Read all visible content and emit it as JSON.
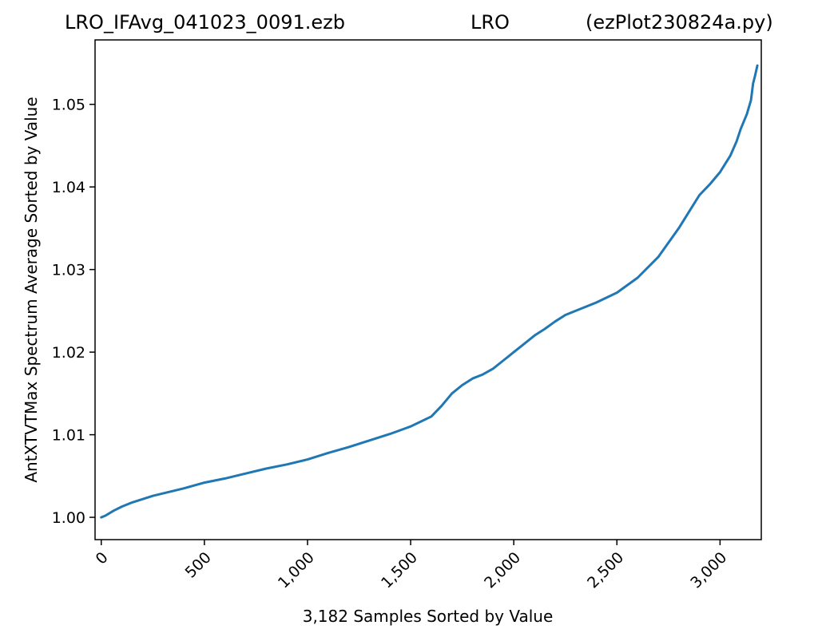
{
  "title": {
    "left": "LRO_IFAvg_041023_0091.ezb",
    "center": "LRO",
    "right": "(ezPlot230824a.py)"
  },
  "chart_data": {
    "type": "line",
    "xlabel": "3,182 Samples Sorted by Value",
    "ylabel": "AntXTVTMax Spectrum Average Sorted by Value",
    "xlim": [
      -30,
      3200
    ],
    "ylim": [
      0.9973,
      1.0578
    ],
    "xticks": [
      0,
      500,
      1000,
      1500,
      2000,
      2500,
      3000
    ],
    "xtick_labels": [
      "0",
      "500",
      "1,000",
      "1,500",
      "2,000",
      "2,500",
      "3,000"
    ],
    "yticks": [
      1.0,
      1.01,
      1.02,
      1.03,
      1.04,
      1.05
    ],
    "ytick_labels": [
      "1.00",
      "1.01",
      "1.02",
      "1.03",
      "1.04",
      "1.05"
    ],
    "grid": false,
    "series": [
      {
        "color": "#1f77b4",
        "x": [
          0,
          20,
          60,
          100,
          150,
          200,
          250,
          300,
          400,
          500,
          600,
          700,
          800,
          900,
          1000,
          1100,
          1200,
          1300,
          1400,
          1500,
          1550,
          1600,
          1650,
          1700,
          1750,
          1800,
          1850,
          1900,
          1950,
          2000,
          2050,
          2100,
          2150,
          2200,
          2250,
          2300,
          2400,
          2500,
          2600,
          2700,
          2800,
          2850,
          2900,
          2950,
          3000,
          3050,
          3080,
          3100,
          3130,
          3150,
          3160,
          3170,
          3181
        ],
        "y": [
          1.0,
          1.0002,
          1.0008,
          1.0013,
          1.0018,
          1.0022,
          1.0026,
          1.0029,
          1.0035,
          1.0042,
          1.0047,
          1.0053,
          1.0059,
          1.0064,
          1.007,
          1.0078,
          1.0085,
          1.0093,
          1.0101,
          1.011,
          1.0116,
          1.0122,
          1.0135,
          1.015,
          1.016,
          1.0168,
          1.0173,
          1.018,
          1.019,
          1.02,
          1.021,
          1.022,
          1.0228,
          1.0237,
          1.0245,
          1.025,
          1.026,
          1.0272,
          1.029,
          1.0315,
          1.035,
          1.037,
          1.039,
          1.0403,
          1.0418,
          1.0438,
          1.0455,
          1.047,
          1.0488,
          1.0505,
          1.0525,
          1.0535,
          1.0547
        ]
      }
    ]
  }
}
